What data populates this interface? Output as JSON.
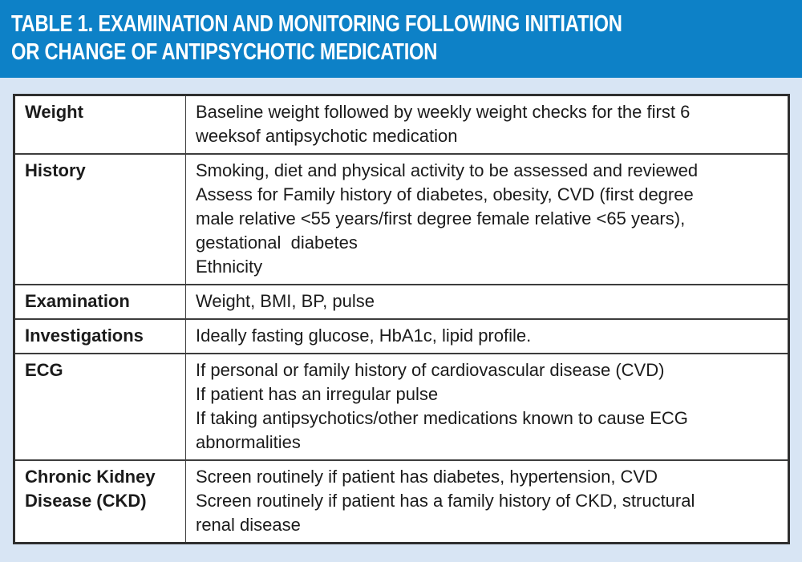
{
  "title": {
    "line1": "TABLE 1. EXAMINATION AND MONITORING FOLLOWING INITIATION",
    "line2": "OR CHANGE OF ANTIPSYCHOTIC MEDICATION"
  },
  "colors": {
    "header_bg": "#0d81c7",
    "page_bg": "#d8e5f4",
    "cell_bg": "#ffffff",
    "border_dark": "#2f2f2f",
    "divider": "#3d3d3d",
    "title_text": "#ffffff",
    "body_text": "#1b1b1b"
  },
  "table": {
    "rows": [
      {
        "label": "Weight",
        "lines": [
          "Baseline weight followed by weekly weight checks for the first 6",
          "weeksof antipsychotic medication"
        ]
      },
      {
        "label": "History",
        "lines": [
          "Smoking, diet and physical activity to be assessed and reviewed",
          "Assess for Family history of diabetes, obesity, CVD (first degree",
          "male relative <55 years/first degree female relative <65 years),",
          "gestational  diabetes",
          "Ethnicity"
        ]
      },
      {
        "label": "Examination",
        "lines": [
          "Weight, BMI, BP, pulse"
        ]
      },
      {
        "label": "Investigations",
        "lines": [
          "Ideally fasting glucose, HbA1c, lipid profile."
        ]
      },
      {
        "label": "ECG",
        "lines": [
          "If personal or family history of cardiovascular disease (CVD)",
          "If patient has an irregular pulse",
          "If taking antipsychotics/other medications known to cause ECG",
          "abnormalities"
        ]
      },
      {
        "label": "Chronic Kidney Disease (CKD)",
        "lines": [
          "Screen routinely if patient has diabetes, hypertension, CVD",
          "Screen routinely if patient has a family history of CKD, structural",
          "renal disease"
        ]
      }
    ]
  }
}
